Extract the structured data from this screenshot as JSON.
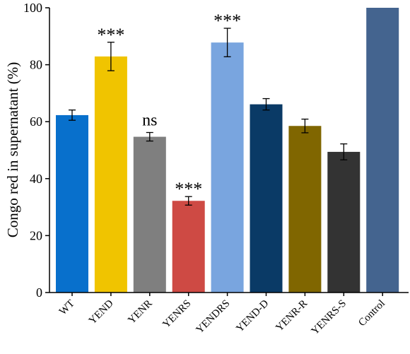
{
  "chart_data": {
    "type": "bar",
    "title": "",
    "xlabel": "",
    "ylabel": "Congo red in supernatant (%)",
    "ylim": [
      0,
      100
    ],
    "yticks": [
      0,
      20,
      40,
      60,
      80,
      100
    ],
    "grid": false,
    "categories": [
      "WT",
      "YEND",
      "YENR",
      "YENRS",
      "YENDRS",
      "YEND-D",
      "YENR-R",
      "YENRS-S",
      "Control"
    ],
    "values": [
      62.3,
      82.9,
      54.7,
      32.2,
      87.8,
      66.1,
      58.5,
      49.4,
      100
    ],
    "errors": [
      1.8,
      5.0,
      1.5,
      1.5,
      5.0,
      2.0,
      2.4,
      2.8,
      null
    ],
    "annotations": [
      "",
      "***",
      "ns",
      "***",
      "***",
      "",
      "",
      "",
      ""
    ],
    "colors": [
      "#0870CC",
      "#F0C400",
      "#7F7F7F",
      "#CE4A44",
      "#79A5DF",
      "#0A3A66",
      "#806600",
      "#333333",
      "#44648F"
    ]
  }
}
